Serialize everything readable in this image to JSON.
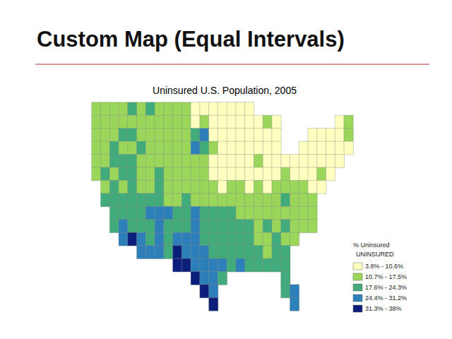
{
  "slide": {
    "title": "Custom Map (Equal Intervals)"
  },
  "chart_data": {
    "type": "heatmap",
    "title": "Uninsured U.S. Population, 2005",
    "tick_labels": false,
    "grid": false,
    "color_scale": {
      "title": "% Uninsured",
      "field": "UNINSURED",
      "pieces": [
        {
          "min": 3.8,
          "max": 10.6,
          "label": "3.8% - 10.6%",
          "color": "#ffffbf"
        },
        {
          "min": 10.7,
          "max": 17.5,
          "label": "10.7% - 17.5%",
          "color": "#99d65a"
        },
        {
          "min": 17.6,
          "max": 24.3,
          "label": "17.6% - 24.3%",
          "color": "#41ab7b"
        },
        {
          "min": 24.4,
          "max": 31.2,
          "label": "24.4% - 31.2%",
          "color": "#2c7fb8"
        },
        {
          "min": 31.3,
          "max": 38,
          "label": "31.3% - 38%",
          "color": "#0b1f7a"
        }
      ]
    },
    "cells": [
      [
        14,
        14,
        14,
        14,
        21,
        14,
        21,
        14,
        14,
        14,
        14,
        7,
        7,
        7,
        7,
        7,
        7,
        7,
        null,
        null,
        null,
        null,
        null,
        null,
        null,
        null,
        null,
        null,
        null
      ],
      [
        14,
        14,
        14,
        14,
        14,
        14,
        14,
        14,
        14,
        14,
        14,
        7,
        14,
        7,
        7,
        7,
        7,
        7,
        7,
        14,
        7,
        null,
        null,
        null,
        null,
        null,
        null,
        7,
        14
      ],
      [
        14,
        14,
        14,
        21,
        21,
        14,
        14,
        14,
        14,
        14,
        14,
        21,
        28,
        7,
        7,
        7,
        7,
        7,
        7,
        7,
        7,
        null,
        null,
        null,
        7,
        7,
        7,
        7,
        14
      ],
      [
        14,
        14,
        21,
        14,
        14,
        21,
        14,
        14,
        14,
        14,
        14,
        28,
        21,
        14,
        7,
        7,
        7,
        7,
        7,
        7,
        7,
        null,
        null,
        7,
        7,
        7,
        7,
        7,
        7
      ],
      [
        14,
        14,
        21,
        21,
        21,
        14,
        14,
        14,
        14,
        14,
        14,
        14,
        14,
        7,
        7,
        7,
        7,
        7,
        14,
        7,
        7,
        7,
        7,
        7,
        7,
        7,
        7,
        7,
        null
      ],
      [
        14,
        21,
        14,
        21,
        21,
        14,
        14,
        21,
        14,
        14,
        14,
        14,
        14,
        7,
        7,
        7,
        7,
        7,
        7,
        7,
        7,
        14,
        7,
        7,
        7,
        14,
        7,
        null,
        null
      ],
      [
        null,
        14,
        21,
        14,
        21,
        14,
        14,
        21,
        14,
        14,
        14,
        14,
        14,
        14,
        7,
        14,
        14,
        7,
        14,
        7,
        14,
        14,
        14,
        14,
        7,
        7,
        null,
        null,
        null
      ],
      [
        null,
        21,
        21,
        21,
        21,
        21,
        21,
        21,
        14,
        14,
        21,
        14,
        14,
        14,
        14,
        14,
        14,
        14,
        14,
        14,
        14,
        21,
        14,
        14,
        14,
        null,
        null,
        null,
        null
      ],
      [
        null,
        null,
        21,
        21,
        21,
        21,
        28,
        28,
        28,
        21,
        21,
        28,
        21,
        21,
        21,
        21,
        14,
        14,
        14,
        14,
        14,
        14,
        14,
        14,
        14,
        null,
        null,
        null,
        null
      ],
      [
        null,
        null,
        21,
        28,
        21,
        21,
        21,
        28,
        21,
        21,
        21,
        28,
        21,
        21,
        21,
        21,
        21,
        21,
        14,
        21,
        14,
        21,
        14,
        14,
        14,
        null,
        null,
        null,
        null
      ],
      [
        null,
        null,
        null,
        28,
        35,
        28,
        21,
        28,
        21,
        28,
        28,
        28,
        21,
        21,
        21,
        21,
        21,
        21,
        14,
        14,
        21,
        14,
        14,
        null,
        null,
        null,
        null,
        null,
        null
      ],
      [
        null,
        null,
        null,
        null,
        null,
        28,
        28,
        28,
        21,
        35,
        28,
        28,
        28,
        21,
        21,
        21,
        21,
        21,
        21,
        14,
        21,
        21,
        null,
        null,
        null,
        null,
        null,
        null,
        null
      ],
      [
        null,
        null,
        null,
        null,
        null,
        null,
        null,
        null,
        null,
        35,
        35,
        28,
        28,
        28,
        28,
        21,
        28,
        21,
        21,
        21,
        21,
        21,
        null,
        null,
        null,
        null,
        null,
        null,
        null
      ],
      [
        null,
        null,
        null,
        null,
        null,
        null,
        null,
        null,
        null,
        null,
        null,
        35,
        28,
        28,
        21,
        null,
        null,
        null,
        null,
        null,
        null,
        21,
        null,
        null,
        null,
        null,
        null,
        null,
        null
      ],
      [
        null,
        null,
        null,
        null,
        null,
        null,
        null,
        null,
        null,
        null,
        null,
        null,
        35,
        28,
        null,
        null,
        null,
        null,
        null,
        null,
        null,
        21,
        28,
        null,
        null,
        null,
        null,
        null,
        null
      ],
      [
        null,
        null,
        null,
        null,
        null,
        null,
        null,
        null,
        null,
        null,
        null,
        null,
        null,
        35,
        null,
        null,
        null,
        null,
        null,
        null,
        null,
        null,
        28,
        null,
        null,
        null,
        null,
        null,
        null
      ]
    ]
  }
}
